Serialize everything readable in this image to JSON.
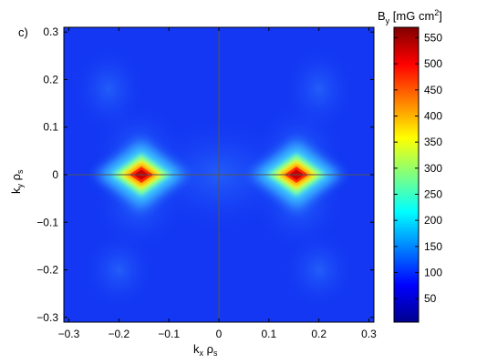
{
  "panel_label": "c)",
  "chart_data": {
    "type": "heatmap",
    "xlabel": {
      "main": "k",
      "sub_1": "x",
      "mid": " ρ",
      "sub_2": "s"
    },
    "ylabel": {
      "main": "k",
      "sub_1": "y",
      "mid": " ρ",
      "sub_2": "s"
    },
    "xlim": [
      -0.31,
      0.31
    ],
    "ylim": [
      -0.31,
      0.31
    ],
    "x_ticks": [
      -0.3,
      -0.2,
      -0.1,
      0,
      0.1,
      0.2,
      0.3
    ],
    "x_tick_labels": [
      "−0.3",
      "−0.2",
      "−0.1",
      "0",
      "0.1",
      "0.2",
      "0.3"
    ],
    "y_ticks": [
      0.3,
      0.2,
      0.1,
      0,
      -0.1,
      -0.2,
      -0.3
    ],
    "y_tick_labels": [
      "0.3",
      "0.2",
      "0.1",
      "0",
      "−0.1",
      "−0.2",
      "−0.3"
    ],
    "zero_lines": true,
    "colormap": "jet",
    "colorbar": {
      "title": {
        "main": "B",
        "sub": "y",
        "rest": " [mG cm",
        "sup": "2",
        "end": "]"
      },
      "range": [
        5,
        570
      ],
      "ticks": [
        50,
        100,
        150,
        200,
        250,
        300,
        350,
        400,
        450,
        500,
        550
      ],
      "tick_labels": [
        "50",
        "100",
        "150",
        "200",
        "250",
        "300",
        "350",
        "400",
        "450",
        "500",
        "550"
      ]
    },
    "features": [
      {
        "kx": -0.155,
        "ky": 0,
        "peak": 560,
        "note": "diamond-shaped maximum on kx axis"
      },
      {
        "kx": 0.155,
        "ky": 0,
        "peak": 555,
        "note": "diamond-shaped maximum on kx axis"
      }
    ],
    "background_level": 20
  }
}
